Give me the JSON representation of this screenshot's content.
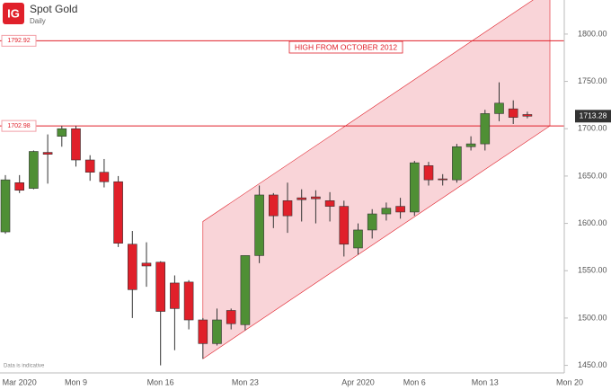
{
  "logo": "IG",
  "chart_data": {
    "type": "candlestick",
    "title": "Spot Gold",
    "subtitle": "Daily",
    "footnote": "Data is indicative",
    "categories": [
      null,
      "Mar 2020",
      null,
      null,
      null,
      "Mon 9",
      null,
      null,
      null,
      null,
      null,
      "Mon 16",
      null,
      null,
      null,
      null,
      null,
      "Mon 23",
      null,
      null,
      null,
      null,
      null,
      null,
      null,
      "Apr 2020",
      null,
      null,
      null,
      "Mon 6",
      null,
      null,
      null,
      null,
      "Mon 13",
      null,
      null,
      null,
      null,
      null,
      "Mon 20"
    ],
    "open": [
      1591,
      1643,
      1637,
      1675,
      1692,
      1700,
      1667,
      1654,
      1644,
      1578,
      1558,
      1559,
      1537,
      1538,
      1498,
      1473,
      1508,
      1493,
      1566,
      1630,
      1624,
      1627,
      1628,
      1624,
      1618,
      1574,
      1593,
      1610,
      1618,
      1612,
      1661,
      1647,
      1646,
      1681,
      1684,
      1716,
      1721,
      1715,
      null,
      null,
      null
    ],
    "high": [
      1651,
      1651,
      1677,
      1694,
      1703,
      1703,
      1672,
      1668,
      1650,
      1592,
      1580,
      1560,
      1545,
      1540,
      1500,
      1510,
      1510,
      1566,
      1640,
      1632,
      1643,
      1636,
      1635,
      1633,
      1624,
      1600,
      1615,
      1622,
      1627,
      1666,
      1665,
      1652,
      1684,
      1692,
      1720,
      1749,
      1730,
      1718,
      null,
      null,
      null
    ],
    "low": [
      1589,
      1632,
      1636,
      1642,
      1681,
      1660,
      1645,
      1638,
      1575,
      1500,
      1533,
      1450,
      1466,
      1488,
      1457,
      1471,
      1488,
      1487,
      1558,
      1595,
      1590,
      1602,
      1600,
      1602,
      1565,
      1567,
      1584,
      1603,
      1605,
      1608,
      1640,
      1640,
      1643,
      1677,
      1677,
      1708,
      1705,
      1711,
      null,
      null,
      null
    ],
    "close": [
      1646,
      1635,
      1676,
      1673,
      1700,
      1667,
      1654,
      1644,
      1579,
      1530,
      1555,
      1507,
      1510,
      1498,
      1473,
      1498,
      1494,
      1566,
      1630,
      1608,
      1608,
      1625,
      1626,
      1618,
      1578,
      1593,
      1610,
      1616,
      1612,
      1664,
      1646,
      1646,
      1681,
      1684,
      1716,
      1727,
      1712,
      1713.28,
      null,
      null,
      null
    ],
    "up_color": "#4f8f35",
    "down_color": "#e0202a",
    "ylim": [
      1442,
      1836
    ],
    "yticks": [
      {
        "value": 1450,
        "label": "1450.00"
      },
      {
        "value": 1500,
        "label": "1500.00"
      },
      {
        "value": 1550,
        "label": "1550.00"
      },
      {
        "value": 1600,
        "label": "1600.00"
      },
      {
        "value": 1650,
        "label": "1650.00"
      },
      {
        "value": 1700,
        "label": "1700.00"
      },
      {
        "value": 1750,
        "label": "1750.00"
      },
      {
        "value": 1800,
        "label": "1800.00"
      }
    ],
    "levels": [
      1792.92,
      1702.98
    ],
    "level_color": "#e0202a",
    "annotation": "HIGH FROM OCTOBER 2012",
    "last_price": 1713.28,
    "channel": {
      "x": [
        14,
        38.6
      ],
      "lower": [
        1457,
        1703
      ],
      "upper": [
        1602,
        1848
      ],
      "color": "#f2a0a8"
    }
  }
}
